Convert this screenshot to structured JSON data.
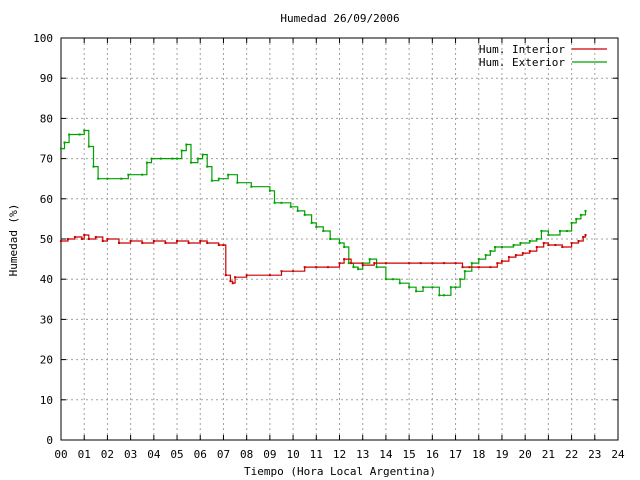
{
  "chart_data": {
    "type": "line",
    "title": "Humedad 26/09/2006",
    "xlabel": "Tiempo (Hora Local Argentina)",
    "ylabel": "Humedad (%)",
    "xlim": [
      0,
      24
    ],
    "ylim": [
      0,
      100
    ],
    "x_ticks": [
      "00",
      "01",
      "02",
      "03",
      "04",
      "05",
      "06",
      "07",
      "08",
      "09",
      "10",
      "11",
      "12",
      "13",
      "14",
      "15",
      "16",
      "17",
      "18",
      "19",
      "20",
      "21",
      "22",
      "23",
      "24"
    ],
    "y_ticks": [
      "0",
      "10",
      "20",
      "30",
      "40",
      "50",
      "60",
      "70",
      "80",
      "90",
      "100"
    ],
    "grid": true,
    "legend_position": "top-right",
    "series": [
      {
        "name": "Hum. Interior",
        "color": "#cc0000",
        "points": [
          [
            0.0,
            49.5
          ],
          [
            0.3,
            50
          ],
          [
            0.6,
            50.5
          ],
          [
            0.9,
            50
          ],
          [
            1.0,
            51
          ],
          [
            1.2,
            50
          ],
          [
            1.5,
            50.5
          ],
          [
            1.8,
            49.5
          ],
          [
            2.0,
            50
          ],
          [
            2.5,
            49
          ],
          [
            3.0,
            49.5
          ],
          [
            3.5,
            49
          ],
          [
            4.0,
            49.5
          ],
          [
            4.5,
            49
          ],
          [
            5.0,
            49.5
          ],
          [
            5.5,
            49
          ],
          [
            6.0,
            49.5
          ],
          [
            6.3,
            49
          ],
          [
            6.8,
            48.5
          ],
          [
            7.0,
            48.5
          ],
          [
            7.1,
            41
          ],
          [
            7.3,
            39.5
          ],
          [
            7.4,
            39
          ],
          [
            7.5,
            40.5
          ],
          [
            8.0,
            41
          ],
          [
            9.0,
            41
          ],
          [
            9.5,
            42
          ],
          [
            10.0,
            42
          ],
          [
            10.5,
            43
          ],
          [
            11.0,
            43
          ],
          [
            11.5,
            43
          ],
          [
            12.0,
            44
          ],
          [
            12.2,
            45
          ],
          [
            12.5,
            44
          ],
          [
            13.0,
            43.5
          ],
          [
            13.5,
            44
          ],
          [
            14.0,
            44
          ],
          [
            15.0,
            44
          ],
          [
            15.5,
            44
          ],
          [
            16.0,
            44
          ],
          [
            16.5,
            44
          ],
          [
            17.0,
            44
          ],
          [
            17.3,
            43
          ],
          [
            17.6,
            43
          ],
          [
            18.0,
            43
          ],
          [
            18.5,
            43
          ],
          [
            18.8,
            44
          ],
          [
            19.0,
            44.5
          ],
          [
            19.3,
            45.5
          ],
          [
            19.6,
            46
          ],
          [
            19.9,
            46.5
          ],
          [
            20.2,
            47
          ],
          [
            20.5,
            48
          ],
          [
            20.8,
            49
          ],
          [
            21.0,
            48.5
          ],
          [
            21.3,
            48.5
          ],
          [
            21.6,
            48
          ],
          [
            22.0,
            49
          ],
          [
            22.3,
            49.5
          ],
          [
            22.5,
            50.5
          ],
          [
            22.6,
            51
          ]
        ]
      },
      {
        "name": "Hum. Exterior",
        "color": "#00a000",
        "points": [
          [
            0.0,
            72.5
          ],
          [
            0.15,
            74
          ],
          [
            0.35,
            76
          ],
          [
            0.8,
            76
          ],
          [
            1.0,
            77
          ],
          [
            1.2,
            73
          ],
          [
            1.4,
            68
          ],
          [
            1.6,
            65
          ],
          [
            2.0,
            65
          ],
          [
            2.6,
            65
          ],
          [
            2.9,
            66
          ],
          [
            3.5,
            66
          ],
          [
            3.7,
            69
          ],
          [
            3.9,
            70
          ],
          [
            4.3,
            70
          ],
          [
            4.8,
            70
          ],
          [
            5.0,
            70
          ],
          [
            5.2,
            72
          ],
          [
            5.4,
            73.5
          ],
          [
            5.6,
            69
          ],
          [
            5.9,
            70
          ],
          [
            6.1,
            71
          ],
          [
            6.3,
            68
          ],
          [
            6.5,
            64.5
          ],
          [
            6.8,
            65
          ],
          [
            7.2,
            66
          ],
          [
            7.6,
            64
          ],
          [
            8.2,
            63
          ],
          [
            9.0,
            62
          ],
          [
            9.2,
            59
          ],
          [
            9.5,
            59
          ],
          [
            9.9,
            58
          ],
          [
            10.2,
            57
          ],
          [
            10.5,
            56
          ],
          [
            10.8,
            54
          ],
          [
            11.0,
            53
          ],
          [
            11.3,
            52
          ],
          [
            11.6,
            50
          ],
          [
            12.0,
            49
          ],
          [
            12.2,
            48
          ],
          [
            12.4,
            44
          ],
          [
            12.6,
            43
          ],
          [
            12.8,
            42.5
          ],
          [
            13.0,
            44
          ],
          [
            13.3,
            45
          ],
          [
            13.6,
            43
          ],
          [
            14.0,
            40
          ],
          [
            14.3,
            40
          ],
          [
            14.6,
            39
          ],
          [
            15.0,
            38
          ],
          [
            15.3,
            37
          ],
          [
            15.6,
            38
          ],
          [
            16.0,
            38
          ],
          [
            16.3,
            36
          ],
          [
            16.5,
            36
          ],
          [
            16.8,
            38
          ],
          [
            17.0,
            38
          ],
          [
            17.2,
            40
          ],
          [
            17.4,
            42
          ],
          [
            17.7,
            44
          ],
          [
            18.0,
            45
          ],
          [
            18.3,
            46
          ],
          [
            18.5,
            47
          ],
          [
            18.7,
            48
          ],
          [
            19.0,
            48
          ],
          [
            19.5,
            48.5
          ],
          [
            19.8,
            49
          ],
          [
            20.2,
            49.5
          ],
          [
            20.5,
            50
          ],
          [
            20.7,
            52
          ],
          [
            21.0,
            51
          ],
          [
            21.5,
            52
          ],
          [
            21.8,
            52
          ],
          [
            22.0,
            54
          ],
          [
            22.2,
            55
          ],
          [
            22.4,
            56
          ],
          [
            22.6,
            57
          ]
        ]
      }
    ]
  }
}
